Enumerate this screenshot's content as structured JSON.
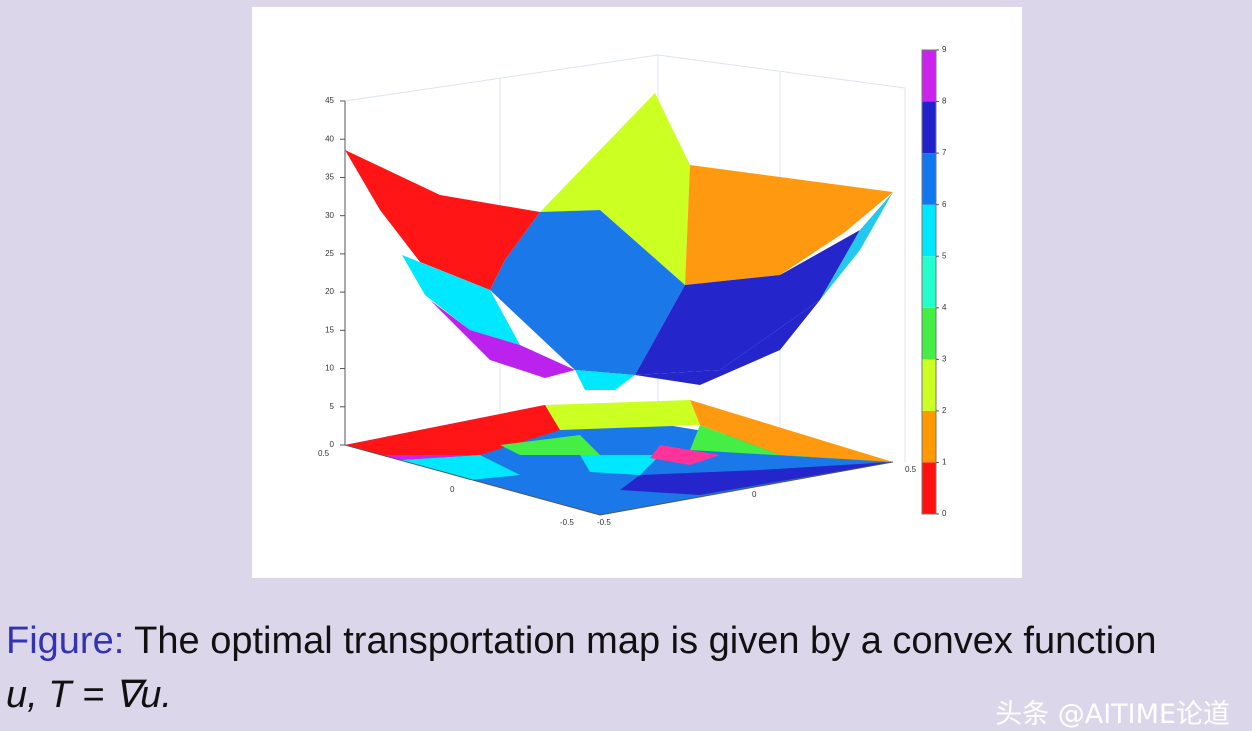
{
  "figure": {
    "z_ticks": [
      0,
      5,
      10,
      15,
      20,
      25,
      30,
      35,
      40,
      45
    ],
    "x_ticks": [
      "-0.5",
      "0",
      "0.5"
    ],
    "y_ticks": [
      "-0.5",
      "0",
      "0.5"
    ],
    "colorbar": {
      "ticks": [
        0,
        1,
        2,
        3,
        4,
        5,
        6,
        7,
        8,
        9
      ],
      "colors": [
        "#ff1010",
        "#ff9900",
        "#ccff22",
        "#44ee44",
        "#22ffcc",
        "#00e8ff",
        "#1177ee",
        "#2222cc",
        "#cc22ee"
      ]
    }
  },
  "caption": {
    "label": "Figure:",
    "text": "The optimal transportation map is given by a convex function",
    "formula": "u, T = ∇u."
  },
  "watermark": "头条 @AITIME论道"
}
